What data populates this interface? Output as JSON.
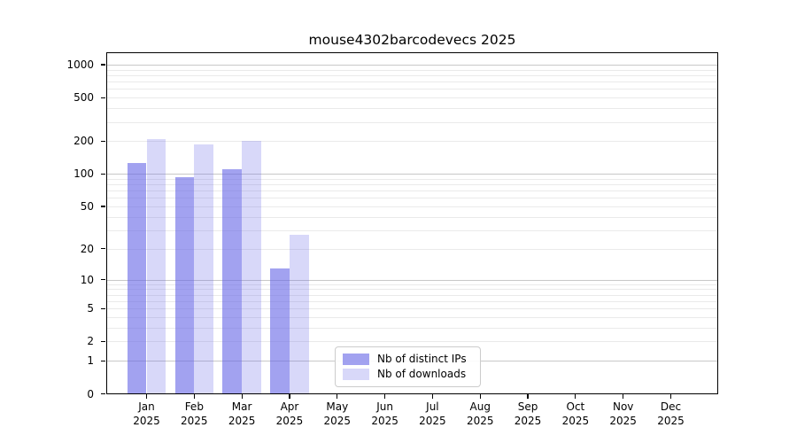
{
  "chart_data": {
    "type": "bar",
    "title": "mouse4302barcodevecs 2025",
    "year_label": "2025",
    "categories": [
      "Jan",
      "Feb",
      "Mar",
      "Apr",
      "May",
      "Jun",
      "Jul",
      "Aug",
      "Sep",
      "Oct",
      "Nov",
      "Dec"
    ],
    "series": [
      {
        "name": "Nb of distinct IPs",
        "color": "rgba(100,100,230,0.6)",
        "values": [
          127,
          93,
          111,
          13,
          0,
          0,
          0,
          0,
          0,
          0,
          0,
          0
        ]
      },
      {
        "name": "Nb of downloads",
        "color": "rgba(100,100,230,0.25)",
        "values": [
          210,
          185,
          203,
          27,
          0,
          0,
          0,
          0,
          0,
          0,
          0,
          0
        ]
      }
    ],
    "y_axis": {
      "scale": "log1p",
      "ticks": [
        1000,
        500,
        200,
        100,
        50,
        20,
        10,
        5,
        2,
        1,
        0
      ],
      "range": [
        0,
        1270
      ],
      "major_grid_values": [
        1,
        10,
        100,
        1000
      ],
      "minor_grid_base": [
        2,
        3,
        4,
        5,
        6,
        7,
        8,
        9
      ]
    },
    "grid": {
      "major_color": "#c8c8c8",
      "minor_color": "#eaeaea"
    },
    "legend": {
      "position": "lower center"
    },
    "colors": {
      "background": "#ffffff",
      "spine": "#000000",
      "text": "#000000"
    }
  }
}
